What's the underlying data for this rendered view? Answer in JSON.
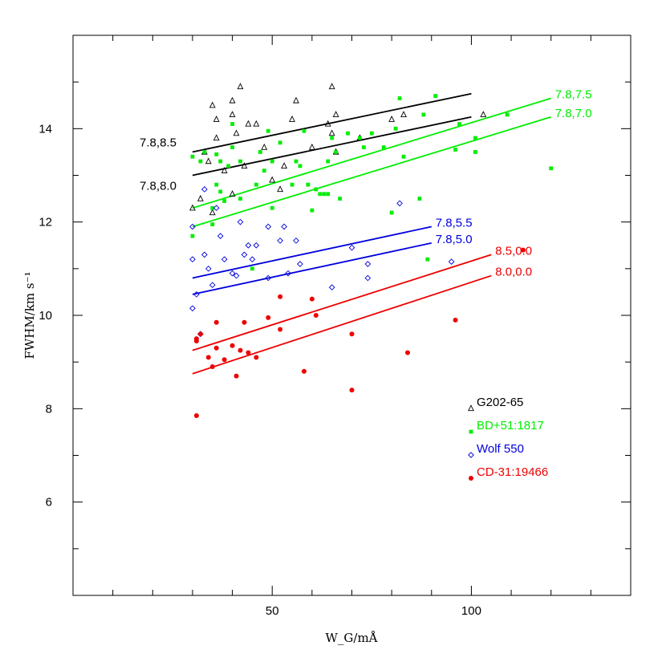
{
  "chart_data": {
    "type": "scatter",
    "xlabel": "W_G/mÅ",
    "ylabel": "FWHM/km s⁻¹",
    "xlim": [
      0,
      140
    ],
    "ylim": [
      4,
      16
    ],
    "x_ticks": [
      50,
      100
    ],
    "y_ticks": [
      6,
      8,
      10,
      12,
      14
    ],
    "grid": false,
    "legend_position": "bottom-right",
    "series": [
      {
        "name": "G202-65",
        "color": "#000000",
        "marker": "triangle-open",
        "points": [
          [
            30,
            12.3
          ],
          [
            32,
            12.5
          ],
          [
            33,
            13.5
          ],
          [
            34,
            13.3
          ],
          [
            35,
            12.2
          ],
          [
            35,
            14.5
          ],
          [
            36,
            14.2
          ],
          [
            36,
            13.8
          ],
          [
            38,
            13.1
          ],
          [
            40,
            12.6
          ],
          [
            40,
            14.6
          ],
          [
            40,
            14.3
          ],
          [
            41,
            13.9
          ],
          [
            42,
            14.9
          ],
          [
            43,
            13.2
          ],
          [
            44,
            14.1
          ],
          [
            46,
            14.1
          ],
          [
            48,
            13.6
          ],
          [
            50,
            12.9
          ],
          [
            52,
            12.7
          ],
          [
            53,
            13.2
          ],
          [
            55,
            14.2
          ],
          [
            56,
            14.6
          ],
          [
            60,
            13.6
          ],
          [
            64,
            14.1
          ],
          [
            65,
            13.9
          ],
          [
            65,
            14.9
          ],
          [
            66,
            14.3
          ],
          [
            66,
            13.5
          ],
          [
            72,
            13.8
          ],
          [
            80,
            14.2
          ],
          [
            83,
            14.3
          ],
          [
            103,
            14.3
          ]
        ]
      },
      {
        "name": "BD+51:1817",
        "color": "#00ee00",
        "marker": "square-filled",
        "points": [
          [
            30,
            11.7
          ],
          [
            30,
            13.4
          ],
          [
            32,
            13.3
          ],
          [
            33,
            13.5
          ],
          [
            35,
            12.3
          ],
          [
            35,
            11.95
          ],
          [
            36,
            12.8
          ],
          [
            36,
            13.45
          ],
          [
            37,
            12.65
          ],
          [
            37,
            13.3
          ],
          [
            38,
            12.45
          ],
          [
            39,
            13.2
          ],
          [
            40,
            14.1
          ],
          [
            40,
            13.6
          ],
          [
            42,
            12.5
          ],
          [
            42,
            13.3
          ],
          [
            45,
            11.0
          ],
          [
            46,
            12.8
          ],
          [
            47,
            13.5
          ],
          [
            48,
            13.1
          ],
          [
            49,
            13.95
          ],
          [
            50,
            13.3
          ],
          [
            50,
            12.3
          ],
          [
            52,
            13.7
          ],
          [
            55,
            12.8
          ],
          [
            56,
            13.3
          ],
          [
            57,
            13.2
          ],
          [
            58,
            13.95
          ],
          [
            59,
            12.8
          ],
          [
            60,
            12.25
          ],
          [
            61,
            12.7
          ],
          [
            62,
            12.6
          ],
          [
            63,
            12.6
          ],
          [
            64,
            12.6
          ],
          [
            64,
            13.3
          ],
          [
            65,
            13.8
          ],
          [
            66,
            13.5
          ],
          [
            67,
            12.5
          ],
          [
            69,
            13.9
          ],
          [
            72,
            13.8
          ],
          [
            73,
            13.6
          ],
          [
            75,
            13.9
          ],
          [
            78,
            13.6
          ],
          [
            80,
            12.2
          ],
          [
            81,
            14.0
          ],
          [
            82,
            14.65
          ],
          [
            83,
            13.4
          ],
          [
            87,
            12.5
          ],
          [
            88,
            14.3
          ],
          [
            89,
            11.2
          ],
          [
            91,
            14.7
          ],
          [
            96,
            13.55
          ],
          [
            97,
            14.1
          ],
          [
            101,
            13.8
          ],
          [
            101,
            13.5
          ],
          [
            109,
            14.3
          ],
          [
            120,
            13.15
          ]
        ]
      },
      {
        "name": "Wolf 550",
        "color": "#0000dd",
        "marker": "diamond-open",
        "points": [
          [
            30,
            11.9
          ],
          [
            30,
            11.2
          ],
          [
            30,
            10.15
          ],
          [
            31,
            10.45
          ],
          [
            32,
            9.6
          ],
          [
            33,
            11.3
          ],
          [
            33,
            12.7
          ],
          [
            34,
            11.0
          ],
          [
            35,
            10.65
          ],
          [
            36,
            12.3
          ],
          [
            37,
            11.7
          ],
          [
            38,
            11.2
          ],
          [
            40,
            10.9
          ],
          [
            41,
            10.85
          ],
          [
            42,
            12.0
          ],
          [
            43,
            11.3
          ],
          [
            44,
            11.5
          ],
          [
            45,
            11.2
          ],
          [
            46,
            11.5
          ],
          [
            49,
            10.8
          ],
          [
            49,
            11.9
          ],
          [
            52,
            11.6
          ],
          [
            53,
            11.9
          ],
          [
            54,
            10.9
          ],
          [
            56,
            11.6
          ],
          [
            57,
            11.1
          ],
          [
            65,
            10.6
          ],
          [
            70,
            11.45
          ],
          [
            74,
            11.1
          ],
          [
            74,
            10.8
          ],
          [
            82,
            12.4
          ],
          [
            95,
            11.15
          ]
        ]
      },
      {
        "name": "CD-31:19466",
        "color": "#ee0000",
        "marker": "circle-filled",
        "points": [
          [
            31,
            9.5
          ],
          [
            31,
            9.45
          ],
          [
            31,
            7.85
          ],
          [
            32,
            9.6
          ],
          [
            34,
            9.1
          ],
          [
            35,
            8.9
          ],
          [
            36,
            9.85
          ],
          [
            36,
            9.3
          ],
          [
            38,
            9.05
          ],
          [
            40,
            9.35
          ],
          [
            41,
            8.7
          ],
          [
            42,
            9.25
          ],
          [
            43,
            9.85
          ],
          [
            44,
            9.2
          ],
          [
            46,
            9.1
          ],
          [
            49,
            9.95
          ],
          [
            52,
            10.4
          ],
          [
            52,
            9.7
          ],
          [
            58,
            8.8
          ],
          [
            60,
            10.35
          ],
          [
            61,
            10.0
          ],
          [
            70,
            9.6
          ],
          [
            70,
            8.4
          ],
          [
            84,
            9.2
          ],
          [
            96,
            9.9
          ],
          [
            113,
            11.4
          ]
        ]
      }
    ],
    "fit_lines": [
      {
        "label": "7.8,8.5",
        "color": "#000000",
        "x": [
          30,
          100
        ],
        "y": [
          13.5,
          14.75
        ]
      },
      {
        "label": "7.8,8.0",
        "color": "#000000",
        "x": [
          30,
          100
        ],
        "y": [
          13.0,
          14.25
        ]
      },
      {
        "label": "7.8,7.5",
        "color": "#00ee00",
        "x": [
          30,
          120
        ],
        "y": [
          12.3,
          14.65
        ]
      },
      {
        "label": "7.8,7.0",
        "color": "#00ee00",
        "x": [
          30,
          120
        ],
        "y": [
          11.9,
          14.25
        ]
      },
      {
        "label": "7.8,5.5",
        "color": "#0000dd",
        "x": [
          30,
          90
        ],
        "y": [
          10.8,
          11.9
        ]
      },
      {
        "label": "7.8,5.0",
        "color": "#0000dd",
        "x": [
          30,
          90
        ],
        "y": [
          10.45,
          11.55
        ]
      },
      {
        "label": "8.5,0.0",
        "color": "#ee0000",
        "x": [
          30,
          105
        ],
        "y": [
          9.25,
          11.3
        ]
      },
      {
        "label": "8.0,0.0",
        "color": "#ee0000",
        "x": [
          30,
          105
        ],
        "y": [
          8.75,
          10.85
        ]
      }
    ]
  }
}
